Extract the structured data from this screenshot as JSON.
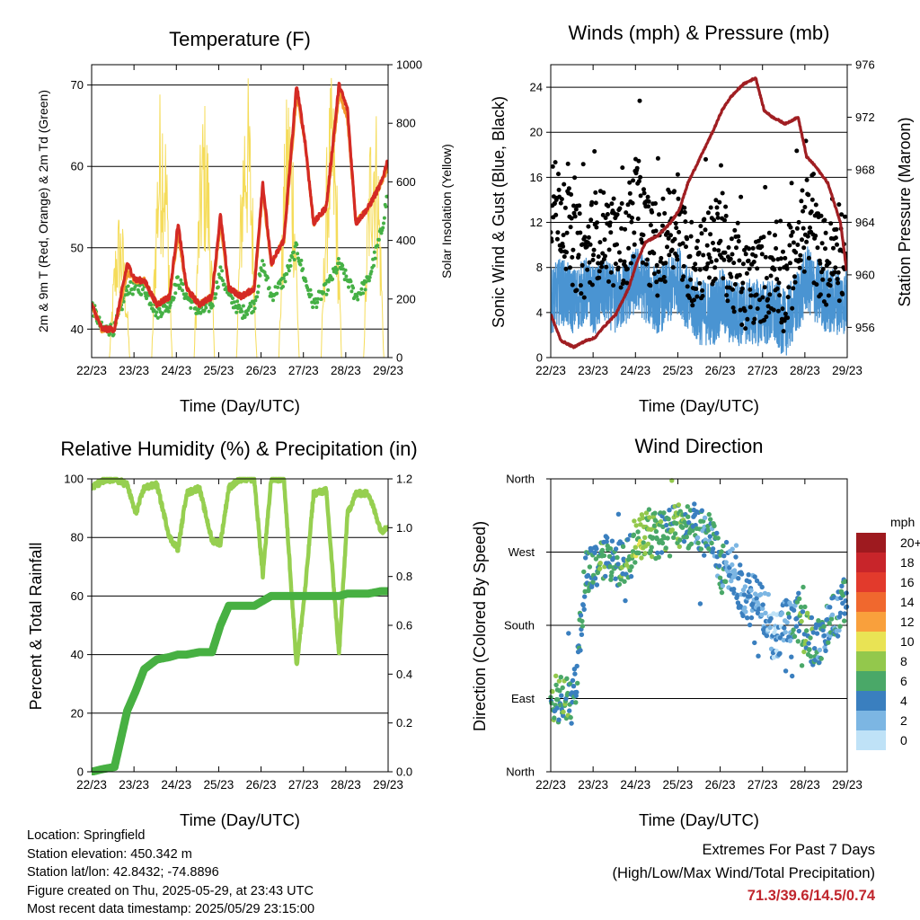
{
  "x_ticks": [
    "22/23",
    "23/23",
    "24/23",
    "25/23",
    "26/23",
    "27/23",
    "28/23",
    "29/23"
  ],
  "x_label": "Time (Day/UTC)",
  "colors": {
    "temp_2m": "#d42a24",
    "temp_9m": "#f29b2f",
    "dewpoint": "#45b045",
    "solar": "#f5dc5a",
    "wind": "#4a94d2",
    "gust": "#000000",
    "pressure": "#a01e22",
    "rh": "#96cf50",
    "rain": "#47b042"
  },
  "temperature": {
    "title": "Temperature (F)",
    "ylabel_left": "2m & 9m T (Red, Orange) & 2m Td (Green)",
    "ylabel_right": "Solar Insolation (Yellow)",
    "left_ticks": [
      "40",
      "50",
      "60",
      "70"
    ],
    "right_ticks": [
      "0",
      "200",
      "400",
      "600",
      "800",
      "1000"
    ]
  },
  "winds": {
    "title": "Winds (mph) & Pressure (mb)",
    "ylabel_left": "Sonic Wind & Gust (Blue, Black)",
    "ylabel_right": "Station Pressure (Maroon)",
    "left_ticks": [
      "0",
      "4",
      "8",
      "12",
      "16",
      "20",
      "24"
    ],
    "right_ticks": [
      "956",
      "960",
      "964",
      "968",
      "972",
      "976"
    ]
  },
  "humidity": {
    "title": "Relative Humidity (%) & Precipitation (in)",
    "ylabel_left": "Percent & Total Rainfall",
    "left_ticks": [
      "0",
      "20",
      "40",
      "60",
      "80",
      "100"
    ],
    "right_ticks": [
      "0.0",
      "0.2",
      "0.4",
      "0.6",
      "0.8",
      "1.0",
      "1.2"
    ]
  },
  "direction": {
    "title": "Wind Direction",
    "ylabel": "Direction (Colored By Speed)",
    "ticks": [
      "North",
      "East",
      "South",
      "West",
      "North"
    ],
    "legend_title": "mph",
    "legend_labels": [
      "20+",
      "18",
      "16",
      "14",
      "12",
      "10",
      "8",
      "6",
      "4",
      "2",
      "0"
    ],
    "legend_colors": [
      "#9e1a1f",
      "#c8252a",
      "#e23a2c",
      "#f0682e",
      "#f9a03c",
      "#e9e354",
      "#93c84c",
      "#4aa868",
      "#3a7fbf",
      "#7cb6e3",
      "#bfe2f7"
    ]
  },
  "info": {
    "location": "Location: Springfield",
    "elevation": "Station elevation: 450.342 m",
    "latlon": "Station lat/lon: 42.8432; -74.8896",
    "created": "Figure created on Thu, 2025-05-29, at 23:43 UTC",
    "recent": "Most recent data timestamp: 2025/05/29 23:15:00"
  },
  "extremes": {
    "line1": "Extremes For Past 7 Days",
    "line2": "(High/Low/Max Wind/Total Precipitation)",
    "values": "71.3/39.6/14.5/0.74"
  },
  "chart_data": [
    {
      "type": "line",
      "title": "Temperature (F)",
      "xlabel": "Time (Day/UTC)",
      "ylabel": "2m & 9m T (Red, Orange) & 2m Td (Green)",
      "y2label": "Solar Insolation (Yellow)",
      "ylim": [
        36.5,
        72.5
      ],
      "y2lim": [
        0,
        1000
      ],
      "x": [
        22.96,
        23.2,
        23.5,
        23.8,
        24.0,
        24.2,
        24.5,
        24.8,
        25.0,
        25.2,
        25.5,
        25.8,
        26.0,
        26.2,
        26.5,
        26.8,
        27.0,
        27.2,
        27.5,
        27.8,
        28.0,
        28.2,
        28.5,
        28.8,
        29.0,
        29.2,
        29.5,
        29.8,
        29.96
      ],
      "series": [
        {
          "name": "2m T",
          "values": [
            43,
            40,
            40,
            48,
            46,
            46,
            43,
            44,
            53,
            45,
            43,
            44,
            54,
            45,
            44,
            45,
            58,
            48,
            51,
            70,
            63,
            53,
            55,
            70,
            67,
            53,
            55,
            58,
            61
          ]
        },
        {
          "name": "9m T",
          "values": [
            43,
            40,
            40,
            47,
            46,
            46,
            43,
            44,
            52,
            45,
            43,
            44,
            53,
            45,
            44,
            45,
            57,
            48,
            51,
            69,
            63,
            53,
            55,
            69,
            66,
            53,
            55,
            58,
            60
          ]
        },
        {
          "name": "2m Td",
          "values": [
            43,
            40,
            40,
            45,
            45,
            45,
            42,
            43,
            46,
            44,
            42,
            43,
            47,
            44,
            42,
            43,
            48,
            44,
            46,
            50,
            46,
            43,
            45,
            48,
            46,
            44,
            46,
            52,
            57
          ]
        },
        {
          "name": "Solar Insolation",
          "axis": "right",
          "day_peaks": [
            520,
            980,
            900,
            1000,
            970,
            960,
            950
          ]
        }
      ]
    },
    {
      "type": "line",
      "title": "Winds (mph) & Pressure (mb)",
      "xlabel": "Time (Day/UTC)",
      "ylabel": "Sonic Wind & Gust (Blue, Black)",
      "y2label": "Station Pressure (Maroon)",
      "ylim": [
        0,
        26
      ],
      "y2lim": [
        953.7,
        976
      ],
      "x": [
        22.96,
        23.2,
        23.5,
        23.8,
        24.0,
        24.2,
        24.5,
        24.8,
        25.0,
        25.2,
        25.5,
        25.8,
        26.0,
        26.2,
        26.5,
        26.8,
        27.0,
        27.2,
        27.5,
        27.8,
        28.0,
        28.2,
        28.5,
        28.8,
        29.0,
        29.2,
        29.5,
        29.8,
        29.96
      ],
      "series": [
        {
          "name": "Sonic Wind",
          "values": [
            5,
            6,
            5,
            6,
            5,
            6,
            5,
            6,
            7,
            6,
            5,
            6,
            7,
            5,
            4,
            4,
            5,
            4,
            4,
            4,
            4,
            4,
            3,
            5,
            7,
            6,
            5,
            5,
            5
          ]
        },
        {
          "name": "Gust",
          "values": [
            14,
            13,
            10,
            9,
            11,
            11,
            10,
            10,
            15,
            11,
            9,
            12,
            12,
            8,
            9,
            10,
            11,
            8,
            6,
            7,
            7,
            8,
            6,
            10,
            12,
            10,
            8,
            9,
            8
          ]
        },
        {
          "name": "Station Pressure",
          "axis": "right",
          "values": [
            957,
            955,
            954.5,
            955,
            955.2,
            956,
            957,
            959,
            961,
            962.5,
            963,
            964,
            965,
            967,
            969,
            971,
            972.5,
            973.5,
            974.5,
            975,
            972.5,
            972,
            971.5,
            972,
            969,
            968.3,
            967,
            964,
            960
          ]
        }
      ]
    },
    {
      "type": "line",
      "title": "Relative Humidity (%) & Precipitation (in)",
      "xlabel": "Time (Day/UTC)",
      "ylabel": "Percent & Total Rainfall",
      "ylim": [
        0,
        100
      ],
      "y2lim": [
        0,
        1.2
      ],
      "x": [
        22.96,
        23.2,
        23.5,
        23.8,
        24.0,
        24.2,
        24.5,
        24.8,
        25.0,
        25.2,
        25.5,
        25.8,
        26.0,
        26.2,
        26.5,
        26.8,
        27.0,
        27.2,
        27.5,
        27.8,
        28.0,
        28.2,
        28.5,
        28.8,
        29.0,
        29.2,
        29.5,
        29.8,
        29.96
      ],
      "series": [
        {
          "name": "Relative Humidity",
          "values": [
            97,
            99,
            100,
            98,
            88,
            97,
            98,
            80,
            76,
            95,
            97,
            79,
            78,
            97,
            100,
            100,
            67,
            100,
            100,
            36,
            62,
            95,
            96,
            40,
            88,
            95,
            95,
            82,
            84
          ]
        },
        {
          "name": "Total Rainfall",
          "axis": "right",
          "values": [
            0.0,
            0.01,
            0.02,
            0.25,
            0.33,
            0.42,
            0.46,
            0.47,
            0.48,
            0.48,
            0.49,
            0.49,
            0.6,
            0.68,
            0.68,
            0.68,
            0.7,
            0.72,
            0.72,
            0.72,
            0.72,
            0.72,
            0.72,
            0.72,
            0.73,
            0.73,
            0.73,
            0.74,
            0.74
          ]
        }
      ]
    },
    {
      "type": "scatter",
      "title": "Wind Direction",
      "xlabel": "Time (Day/UTC)",
      "ylabel": "Direction (Colored By Speed)",
      "ylim": [
        0,
        360
      ],
      "x": [
        22.96,
        23.2,
        23.5,
        23.8,
        24.0,
        24.2,
        24.5,
        24.8,
        25.0,
        25.2,
        25.5,
        25.8,
        26.0,
        26.2,
        26.5,
        26.8,
        27.0,
        27.2,
        27.5,
        27.8,
        28.0,
        28.2,
        28.5,
        28.8,
        29.0,
        29.2,
        29.5,
        29.8,
        29.96
      ],
      "series": [
        {
          "name": "Direction",
          "values": [
            92,
            90,
            86,
            250,
            255,
            265,
            250,
            260,
            290,
            295,
            290,
            295,
            305,
            305,
            300,
            280,
            250,
            255,
            220,
            210,
            200,
            165,
            180,
            190,
            170,
            155,
            180,
            195,
            230
          ]
        },
        {
          "name": "Speed",
          "values": [
            6,
            6,
            5,
            5,
            5,
            6,
            5,
            6,
            8,
            7,
            6,
            6,
            7,
            5,
            4,
            4,
            5,
            3,
            3,
            3,
            3,
            2,
            3,
            5,
            7,
            5,
            4,
            4,
            5
          ]
        }
      ]
    }
  ]
}
